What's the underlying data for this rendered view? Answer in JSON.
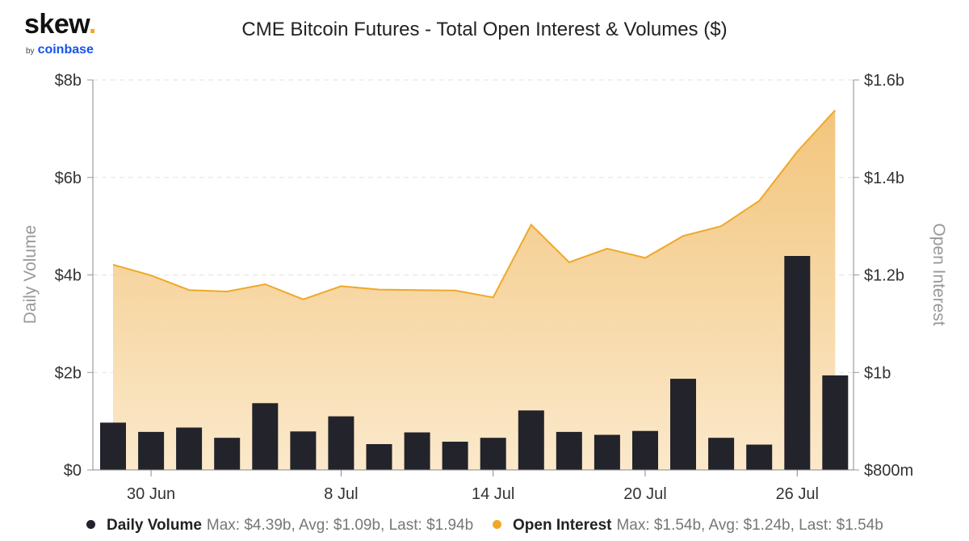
{
  "logo": {
    "brand": "skew",
    "dot": ".",
    "by": "by",
    "parent": "coinbase"
  },
  "colors": {
    "volume_bar": "#23232b",
    "open_interest_line": "#f0a829",
    "area_top": "#f2c57c",
    "area_bottom": "#fbe9cb",
    "grid": "#e2e2e2",
    "axis_text": "#333333",
    "axis_title": "#999999"
  },
  "chart_data": {
    "type": "bar+area",
    "title": "CME Bitcoin Futures - Total Open Interest & Volumes ($)",
    "x_ticks": [
      "30 Jun",
      "8 Jul",
      "14 Jul",
      "20 Jul",
      "26 Jul"
    ],
    "y_left": {
      "label": "Daily Volume",
      "ticks": [
        "$0",
        "$2b",
        "$4b",
        "$6b",
        "$8b"
      ],
      "range_b": [
        0,
        8
      ]
    },
    "y_right": {
      "label": "Open Interest",
      "ticks": [
        "$800m",
        "$1b",
        "$1.2b",
        "$1.4b",
        "$1.6b"
      ],
      "range_b": [
        0.8,
        1.6
      ]
    },
    "grid": true,
    "legend_position": "bottom",
    "daily_volume": {
      "name": "Daily Volume",
      "unit": "billion USD",
      "stats": "Max: $4.39b, Avg: $1.09b, Last: $1.94b",
      "values": [
        0.97,
        0.78,
        0.87,
        0.66,
        1.37,
        0.79,
        1.1,
        0.53,
        0.77,
        0.58,
        0.66,
        1.22,
        0.78,
        0.72,
        0.8,
        1.87,
        0.66,
        0.52,
        4.39,
        1.94
      ]
    },
    "open_interest": {
      "name": "Open Interest",
      "unit": "billion USD",
      "stats": "Max: $1.54b, Avg: $1.24b, Last: $1.54b",
      "values": [
        1.221,
        1.199,
        1.169,
        1.166,
        1.181,
        1.15,
        1.177,
        1.17,
        1.169,
        1.168,
        1.154,
        1.303,
        1.226,
        1.254,
        1.235,
        1.28,
        1.3,
        1.352,
        1.453,
        1.538
      ]
    }
  }
}
